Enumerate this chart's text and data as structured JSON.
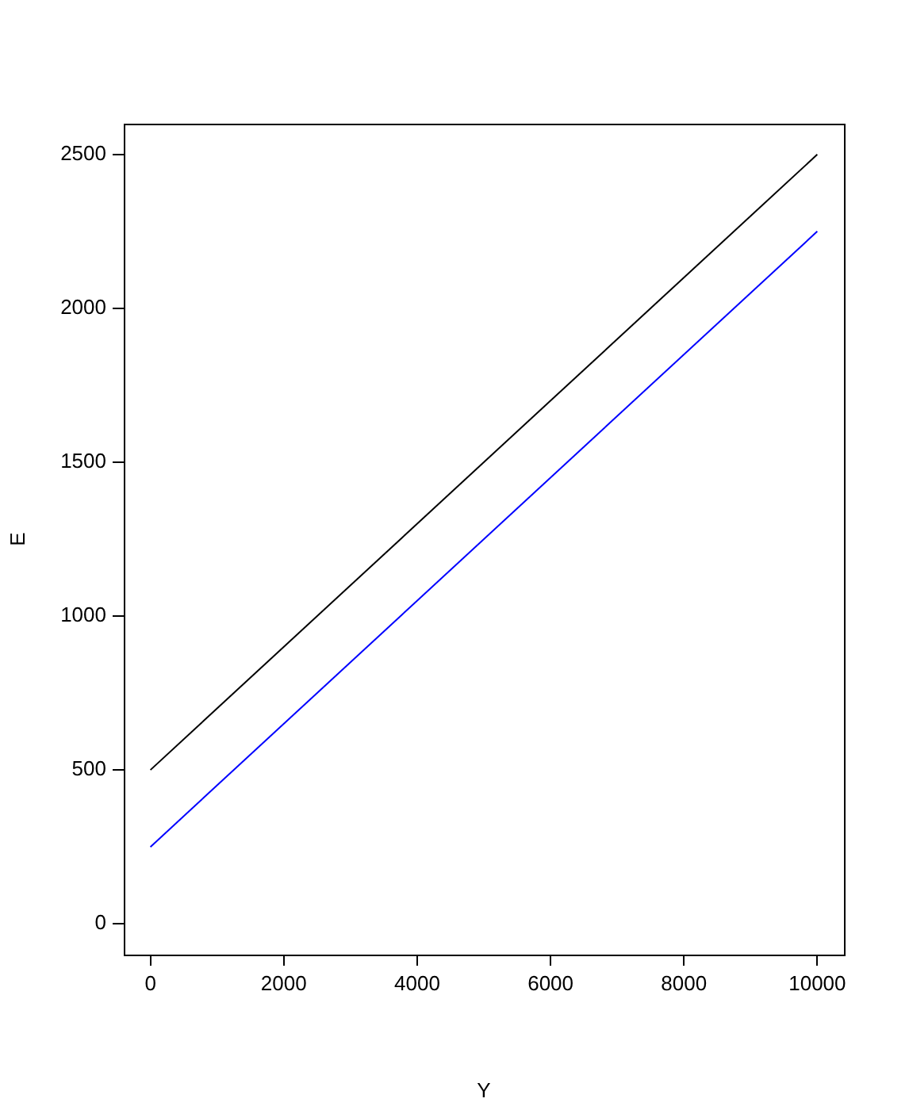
{
  "chart_data": {
    "type": "line",
    "xlabel": "Y",
    "ylabel": "E",
    "x": [
      0,
      10000
    ],
    "series": [
      {
        "color": "#000000",
        "values": [
          500,
          2500
        ]
      },
      {
        "color": "#0000ff",
        "values": [
          250,
          2250
        ]
      }
    ],
    "xlim": [
      -400,
      10400
    ],
    "xticks": [
      0,
      2000,
      4000,
      6000,
      8000,
      10000
    ],
    "ylim": [
      -100,
      2600
    ],
    "yticks": [
      0,
      500,
      1000,
      1500,
      2000,
      2500
    ],
    "grid": false,
    "legend": false,
    "marker": "none",
    "line_style": "solid"
  }
}
